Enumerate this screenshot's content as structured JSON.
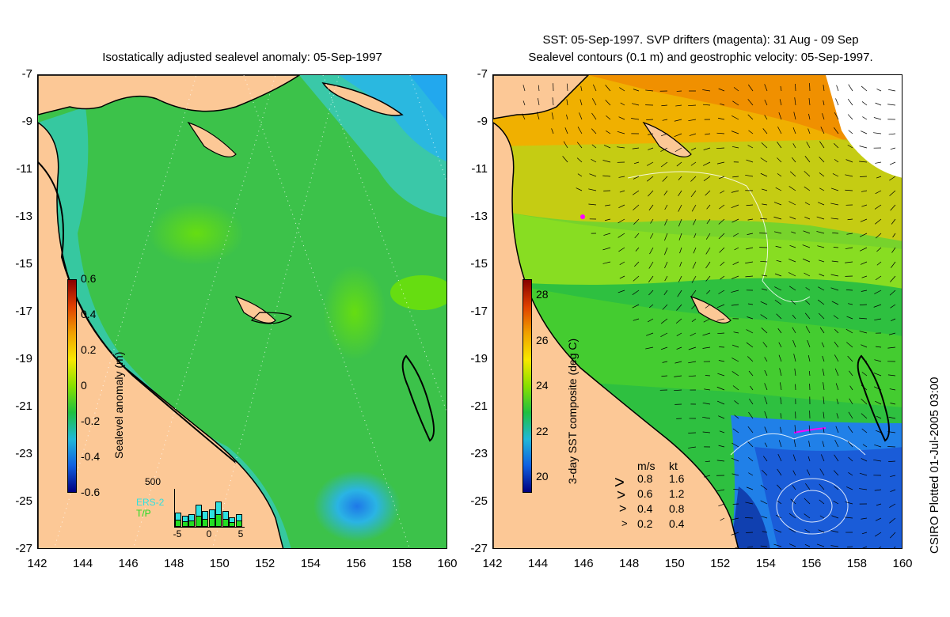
{
  "left_panel": {
    "title": "Isostatically adjusted sealevel anomaly: 05-Sep-1997",
    "colorbar_label": "Sealevel anomaly (m)",
    "colorbar_ticks": [
      "0.6",
      "0.4",
      "0.2",
      "0",
      "-0.2",
      "-0.4",
      "-0.6"
    ],
    "histogram": {
      "ymax_label": "500",
      "series_labels": [
        "ERS-2",
        "T/P"
      ],
      "series_colors": [
        "#2ee0e0",
        "#22dd22"
      ],
      "x_ticks": [
        "-5",
        "0",
        "5"
      ]
    }
  },
  "right_panel": {
    "title_line1": "SST: 05-Sep-1997. SVP drifters (magenta): 31 Aug - 09 Sep",
    "title_line2": "Sealevel contours (0.1 m) and geostrophic velocity: 05-Sep-1997.",
    "colorbar_label": "3-day SST composite (deg C)",
    "colorbar_ticks": [
      "28",
      "26",
      "24",
      "22",
      "20"
    ],
    "velocity_legend": {
      "header_ms": "m/s",
      "header_kt": "kt",
      "rows": [
        {
          "ms": "0.8",
          "kt": "1.6"
        },
        {
          "ms": "0.6",
          "kt": "1.2"
        },
        {
          "ms": "0.4",
          "kt": "0.8"
        },
        {
          "ms": "0.2",
          "kt": "0.4"
        }
      ]
    }
  },
  "axes": {
    "y_ticks": [
      "-7",
      "-9",
      "-11",
      "-13",
      "-15",
      "-17",
      "-19",
      "-21",
      "-23",
      "-25",
      "-27"
    ],
    "x_ticks": [
      "142",
      "144",
      "146",
      "148",
      "150",
      "152",
      "154",
      "156",
      "158",
      "160"
    ]
  },
  "credit": "CSIRO Plotted 01-Jul-2005 03:00",
  "colors": {
    "land": "#fcc896",
    "sla_background": "#3cc83c",
    "sst_green": "#77dd22",
    "sst_orange": "#f0a000",
    "sst_blue": "#2277ee",
    "drifter": "#ff00ff"
  }
}
